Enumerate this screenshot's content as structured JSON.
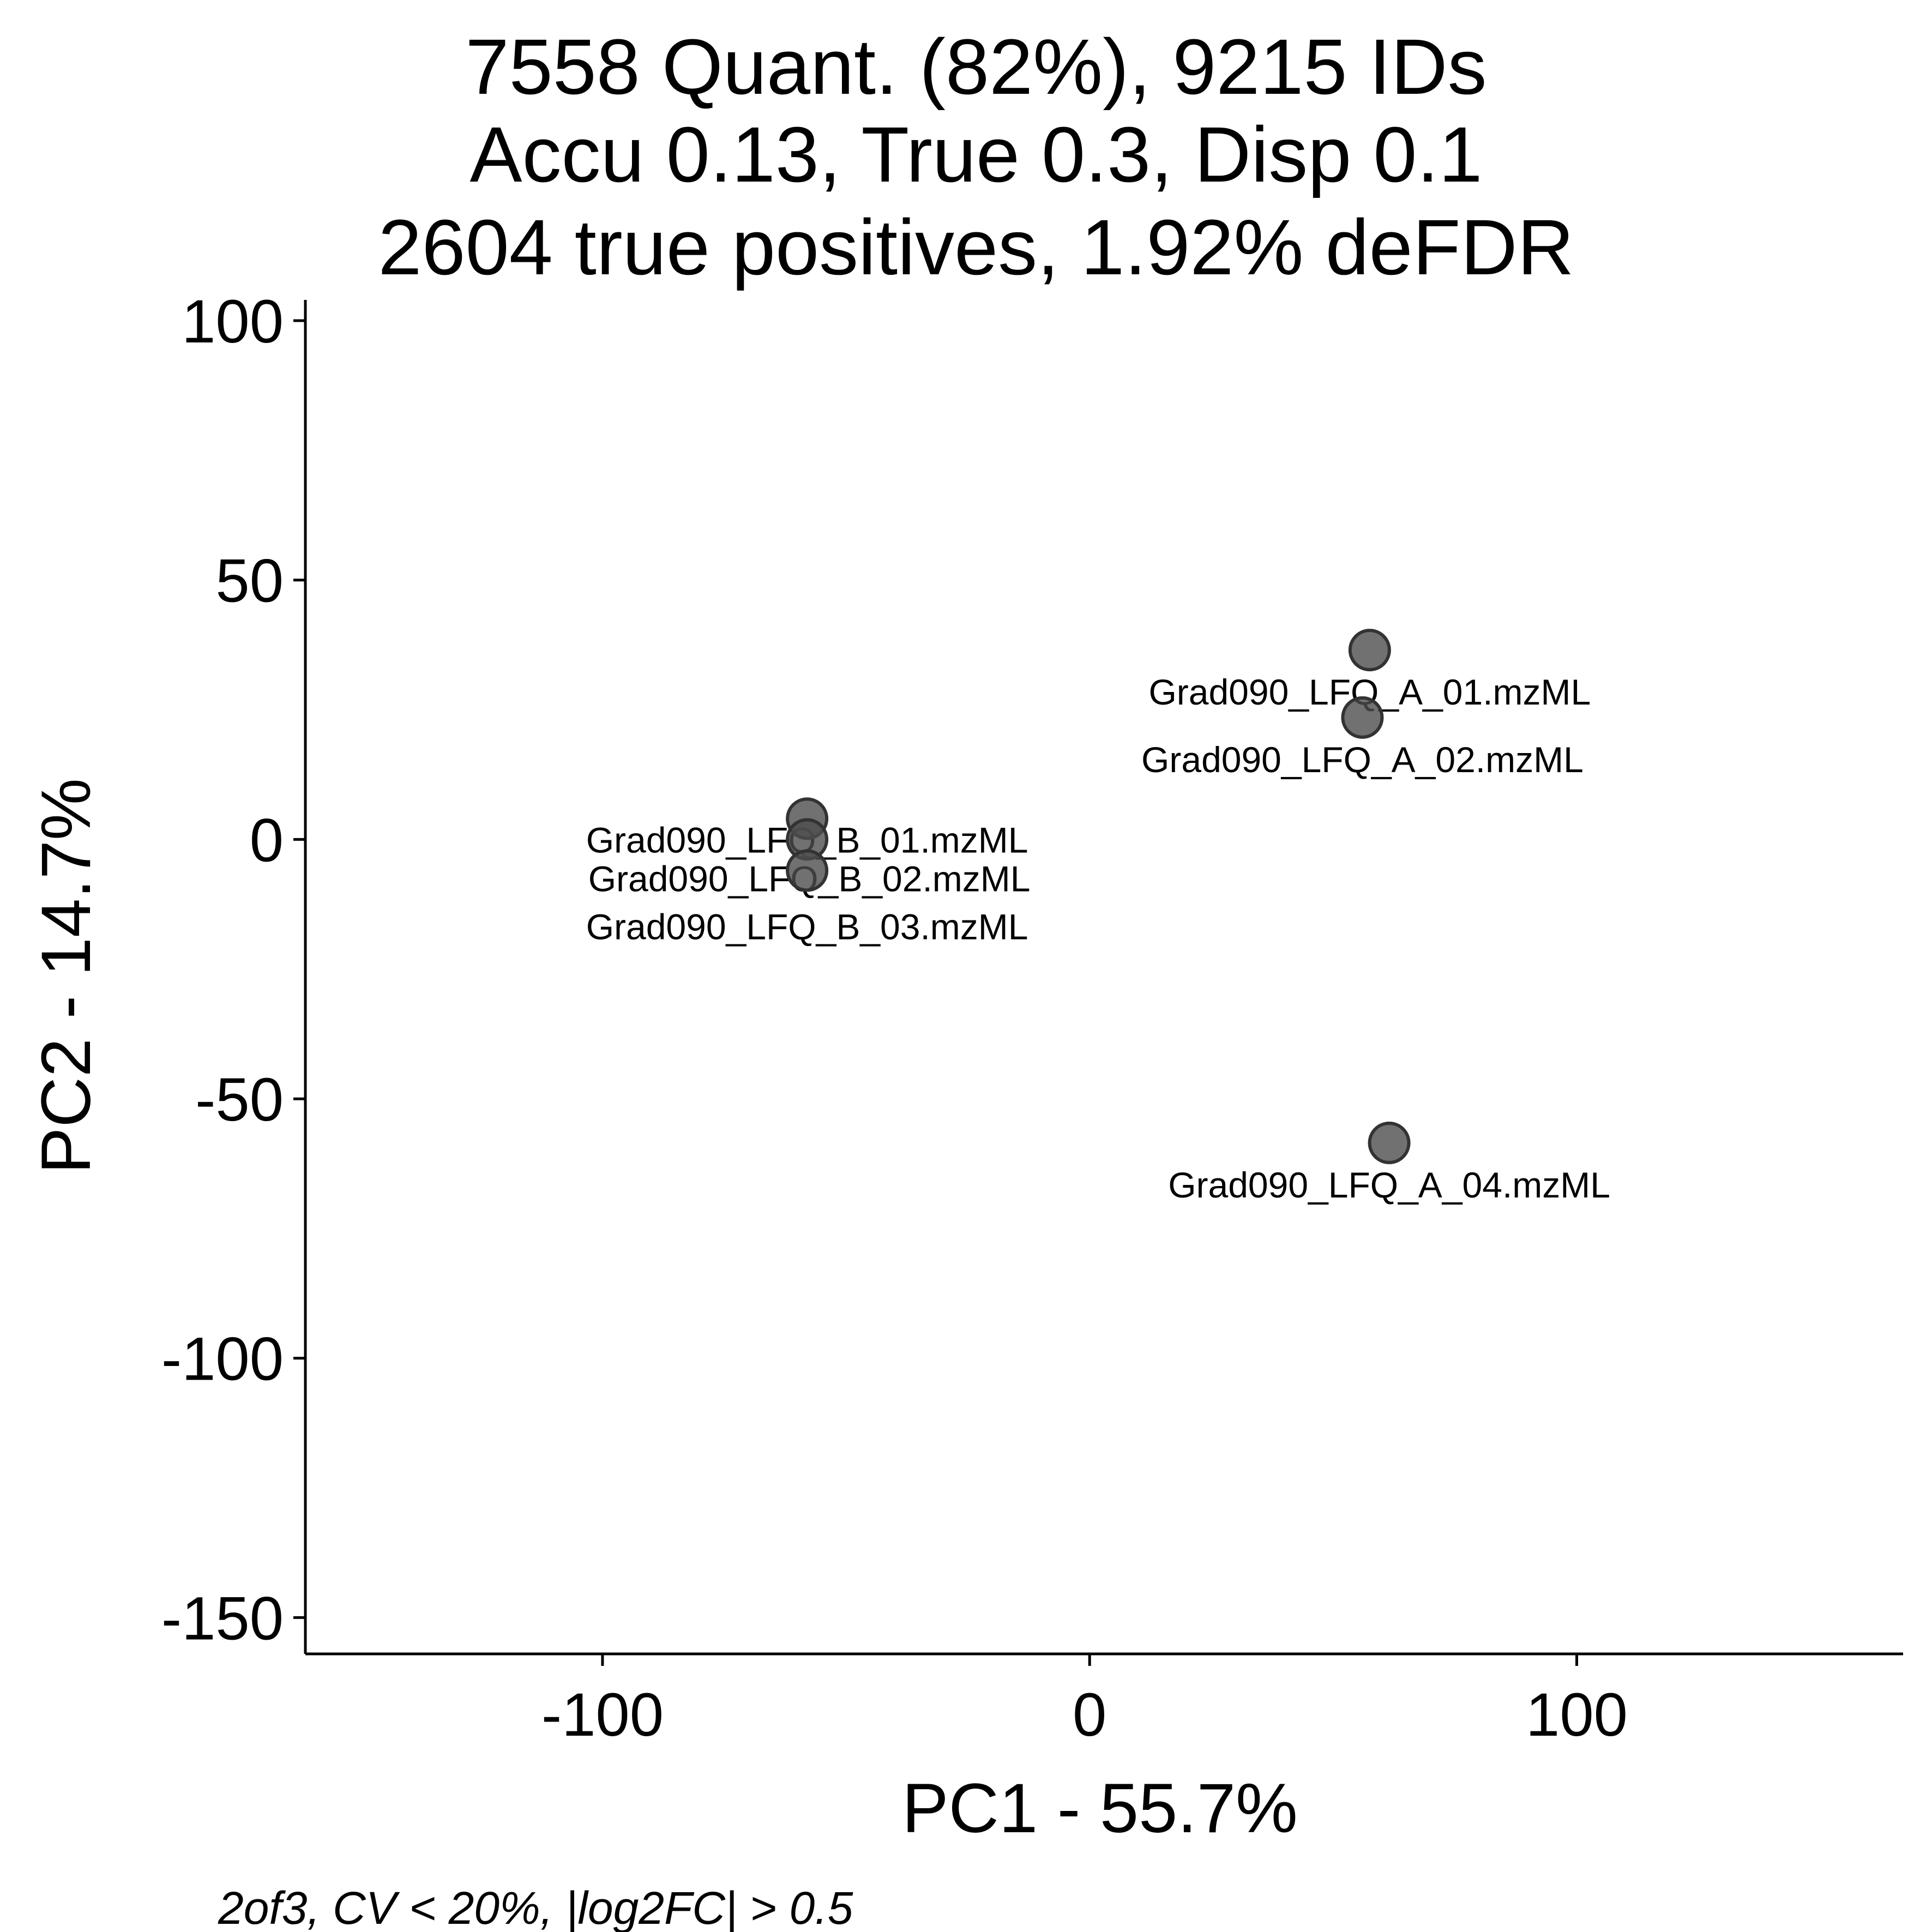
{
  "chart_data": {
    "type": "scatter",
    "title_lines": [
      "7558 Quant. (82%), 9215 IDs",
      "Accu 0.13, True 0.3, Disp 0.1",
      "2604 true positives, 1.92% deFDR"
    ],
    "xlabel": "PC1 - 55.7%",
    "ylabel": "PC2 - 14.7%",
    "caption": "2of3, CV < 20%, |log2FC| > 0.5",
    "xlim": [
      -161,
      167
    ],
    "ylim": [
      -157,
      104
    ],
    "x_ticks": [
      -100,
      0,
      100
    ],
    "x_tick_labels": [
      "-100",
      "0",
      "100"
    ],
    "y_ticks": [
      100,
      50,
      0,
      -50,
      -100,
      -150
    ],
    "y_tick_labels": [
      "100",
      "50",
      "0",
      "-50",
      "-100",
      "-150"
    ],
    "grid": false,
    "legend": "none",
    "colors": {
      "point_fill": "#4d4d4d",
      "point_stroke": "#333333",
      "axis": "#000000"
    },
    "points": [
      {
        "label": "Grad090_LFQ_A_01.mzML",
        "x": 57.5,
        "y": 36.5
      },
      {
        "label": "Grad090_LFQ_A_02.mzML",
        "x": 56,
        "y": 23.5
      },
      {
        "label": "Grad090_LFQ_A_04.mzML",
        "x": 61.5,
        "y": -58.5
      },
      {
        "label": "Grad090_LFQ_B_01.mzML",
        "x": -58,
        "y": 4
      },
      {
        "label": "Grad090_LFQ_B_02.mzML",
        "x": -58,
        "y": 0
      },
      {
        "label": "Grad090_LFQ_B_03.mzML",
        "x": -58,
        "y": -6
      }
    ]
  }
}
